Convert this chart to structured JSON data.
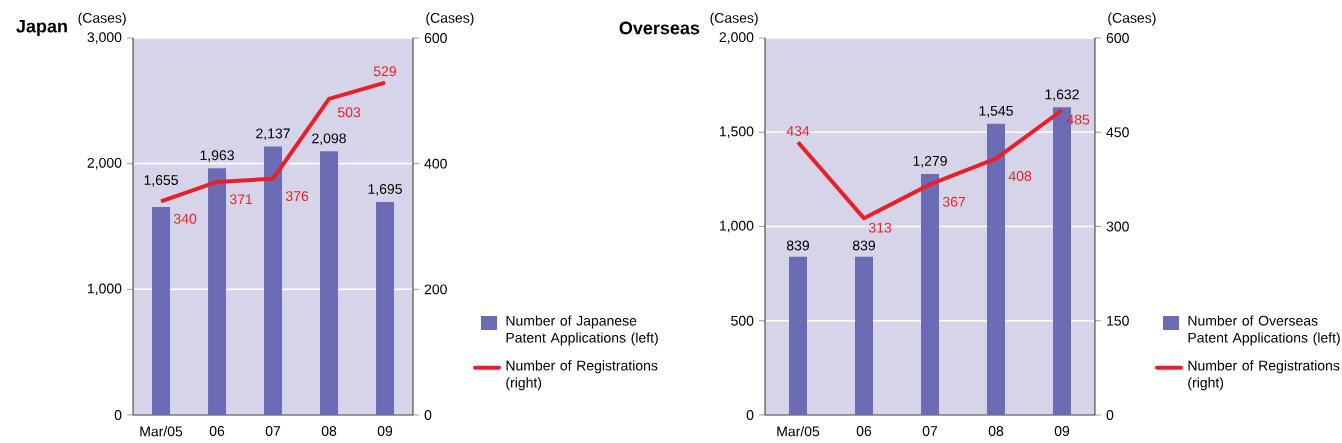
{
  "chart_data": [
    {
      "type": "bar",
      "title": "Japan",
      "ylabel": "(Cases)",
      "y2label": "(Cases)",
      "categories": [
        "Mar/05",
        "06",
        "07",
        "08",
        "09"
      ],
      "series": [
        {
          "name": "Number of Japanese Patent Applications (left)",
          "color": "#6b6cb4",
          "values": [
            1655,
            1963,
            2137,
            2098,
            1695
          ],
          "value_labels": [
            "1,655",
            "1,963",
            "2,137",
            "2,098",
            "1,695"
          ]
        },
        {
          "name": "Number of Registrations (right)",
          "type": "line",
          "axis": "y2",
          "color": "#e8202a",
          "values": [
            340,
            371,
            376,
            503,
            529
          ],
          "value_labels": [
            "340",
            "371",
            "376",
            "503",
            "529"
          ]
        }
      ],
      "ylim": [
        0,
        3000
      ],
      "yticks": [
        0,
        {
          "value": 1000,
          "label": "1,000"
        },
        {
          "value": 2000,
          "label": "2,000"
        },
        {
          "value": 3000,
          "label": "3,000"
        }
      ],
      "y2lim": [
        0,
        600
      ],
      "y2ticks": [
        0,
        200,
        400,
        600
      ],
      "grid": "y",
      "legend": "right"
    },
    {
      "type": "bar",
      "title": "Overseas",
      "ylabel": "(Cases)",
      "y2label": "(Cases)",
      "categories": [
        "Mar/05",
        "06",
        "07",
        "08",
        "09"
      ],
      "series": [
        {
          "name": "Number of Overseas Patent Applications (left)",
          "color": "#6b6cb4",
          "values": [
            839,
            839,
            1279,
            1545,
            1632
          ],
          "value_labels": [
            "839",
            "839",
            "1,279",
            "1,545",
            "1,632"
          ]
        },
        {
          "name": "Number of Registrations (right)",
          "type": "line",
          "axis": "y2",
          "color": "#e8202a",
          "values": [
            434,
            313,
            367,
            408,
            485
          ],
          "value_labels": [
            "434",
            "313",
            "367",
            "408",
            "485"
          ]
        }
      ],
      "ylim": [
        0,
        2000
      ],
      "yticks": [
        0,
        500,
        {
          "value": 1000,
          "label": "1,000"
        },
        {
          "value": 1500,
          "label": "1,500"
        },
        {
          "value": 2000,
          "label": "2,000"
        }
      ],
      "y2lim": [
        0,
        600
      ],
      "y2ticks": [
        0,
        150,
        300,
        450,
        600
      ],
      "grid": "y",
      "legend": "right"
    }
  ]
}
